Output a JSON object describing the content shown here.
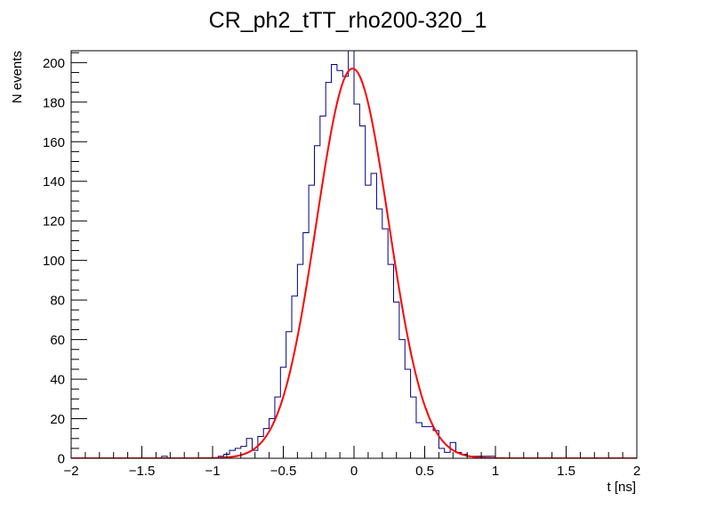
{
  "chart_data": {
    "type": "histogram",
    "title": "CR_ph2_tTT_rho200-320_1",
    "xlabel": "t [ns]",
    "ylabel": "N events",
    "xlim": [
      -2,
      2
    ],
    "ylim": [
      0,
      206
    ],
    "grid": false,
    "legend": "none",
    "x_ticks": [
      -2,
      -1.5,
      -1,
      -0.5,
      0,
      0.5,
      1,
      1.5,
      2
    ],
    "x_tick_labels": [
      "−2",
      "−1.5",
      "−1",
      "−0.5",
      "0",
      "0.5",
      "1",
      "1.5",
      "2"
    ],
    "y_ticks": [
      0,
      20,
      40,
      60,
      80,
      100,
      120,
      140,
      160,
      180,
      200
    ],
    "y_tick_labels": [
      "0",
      "20",
      "40",
      "60",
      "80",
      "100",
      "120",
      "140",
      "160",
      "180",
      "200"
    ],
    "bin_width": 0.04,
    "histogram": {
      "color": "#000080",
      "bin_low_edges": [
        -2.0,
        -1.96,
        -1.92,
        -1.88,
        -1.84,
        -1.8,
        -1.76,
        -1.72,
        -1.68,
        -1.64,
        -1.6,
        -1.56,
        -1.52,
        -1.48,
        -1.44,
        -1.4,
        -1.36,
        -1.32,
        -1.28,
        -1.24,
        -1.2,
        -1.16,
        -1.12,
        -1.08,
        -1.04,
        -1.0,
        -0.96,
        -0.92,
        -0.88,
        -0.84,
        -0.8,
        -0.76,
        -0.72,
        -0.68,
        -0.64,
        -0.6,
        -0.56,
        -0.52,
        -0.48,
        -0.44,
        -0.4,
        -0.36,
        -0.32,
        -0.28,
        -0.24,
        -0.2,
        -0.16,
        -0.12,
        -0.08,
        -0.04,
        0.0,
        0.04,
        0.08,
        0.12,
        0.16,
        0.2,
        0.24,
        0.28,
        0.32,
        0.36,
        0.4,
        0.44,
        0.48,
        0.52,
        0.56,
        0.6,
        0.64,
        0.68,
        0.72,
        0.76,
        0.8,
        0.84,
        0.88,
        0.92,
        0.96,
        1.0,
        1.04,
        1.08,
        1.12,
        1.16,
        1.2,
        1.24,
        1.28,
        1.32,
        1.36,
        1.4,
        1.44,
        1.48,
        1.52,
        1.56,
        1.6,
        1.64,
        1.68,
        1.72,
        1.76,
        1.8,
        1.84,
        1.88,
        1.92,
        1.96
      ],
      "counts": [
        0,
        0,
        0,
        0,
        0,
        0,
        0,
        0,
        0,
        0,
        0,
        0,
        0,
        0,
        0,
        0,
        1,
        0,
        0,
        0,
        0,
        0,
        0,
        0,
        0,
        0,
        1,
        2,
        4,
        5,
        6,
        10,
        4,
        11,
        15,
        20,
        31,
        46,
        64,
        82,
        98,
        114,
        138,
        158,
        173,
        190,
        199,
        196,
        193,
        206,
        179,
        168,
        138,
        144,
        126,
        116,
        98,
        79,
        60,
        45,
        31,
        18,
        16,
        16,
        14,
        5,
        3,
        8,
        3,
        2,
        1,
        1,
        1,
        1,
        1,
        0,
        0,
        0,
        0,
        0,
        0,
        0,
        0,
        0,
        0,
        0,
        0,
        0,
        0,
        0,
        0,
        0,
        0,
        0,
        0,
        0,
        0,
        0,
        0,
        0
      ]
    },
    "fit": {
      "type": "gaussian",
      "color": "#ff0000",
      "amplitude": 197,
      "mean": -0.01,
      "sigma": 0.255
    }
  }
}
